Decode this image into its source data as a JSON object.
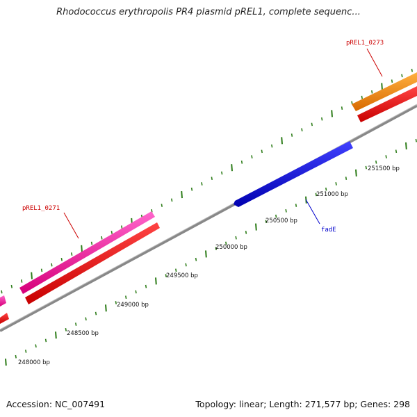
{
  "title": "Rhodococcus erythropolis PR4 plasmid pREL1, complete sequenc...",
  "ticks": [
    {
      "label": "248000 bp"
    },
    {
      "label": "248500 bp"
    },
    {
      "label": "249000 bp"
    },
    {
      "label": "249500 bp"
    },
    {
      "label": "250000 bp"
    },
    {
      "label": "250500 bp"
    },
    {
      "label": "251000 bp"
    },
    {
      "label": "251500 bp"
    }
  ],
  "genes": [
    {
      "name": "pREL1_0271",
      "color": "#ff2299"
    },
    {
      "name": "pREL1_0273",
      "color": "#ff8800"
    },
    {
      "name": "fadE",
      "color": "#0000ee"
    }
  ],
  "colors": {
    "cds": "#ff0000",
    "tick": "#2e7d1a",
    "backbone": "#777777"
  },
  "footer": {
    "accession": "Accession: NC_007491",
    "summary": "Topology: linear; Length: 271,577 bp; Genes: 298"
  }
}
